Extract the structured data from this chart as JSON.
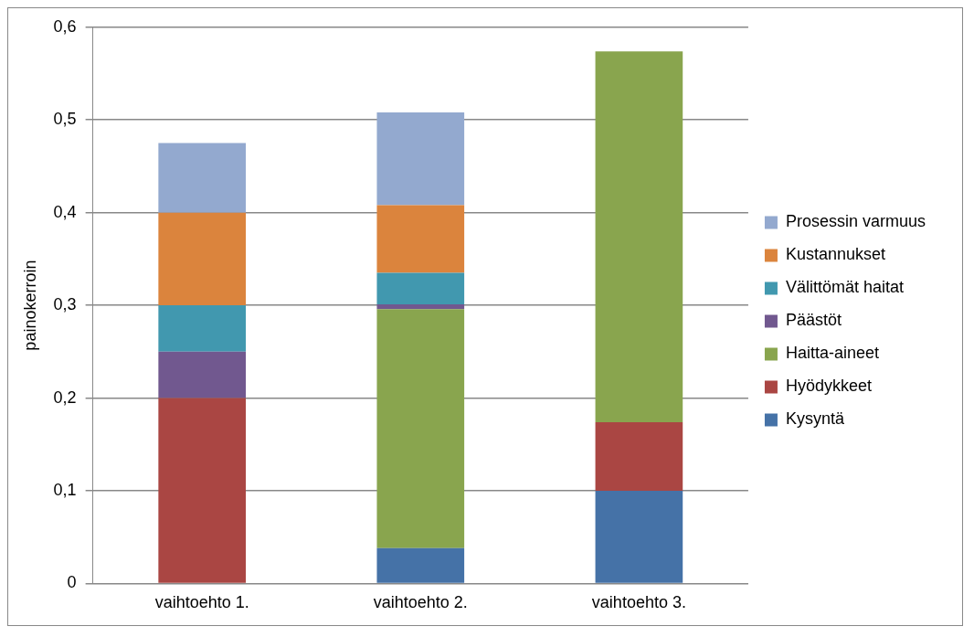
{
  "chart_data": {
    "type": "bar",
    "stacked": true,
    "ylabel": "painokerroin",
    "categories": [
      "vaihtoehto 1.",
      "vaihtoehto 2.",
      "vaihtoehto 3."
    ],
    "ylim": [
      0,
      0.6
    ],
    "yticks": [
      {
        "value": 0,
        "label": "0"
      },
      {
        "value": 0.1,
        "label": "0,1"
      },
      {
        "value": 0.2,
        "label": "0,2"
      },
      {
        "value": 0.3,
        "label": "0,3"
      },
      {
        "value": 0.4,
        "label": "0,4"
      },
      {
        "value": 0.5,
        "label": "0,5"
      },
      {
        "value": 0.6,
        "label": "0,6"
      }
    ],
    "grid": "y",
    "legend": "right",
    "series": [
      {
        "name": "Kysyntä",
        "color": "#4572a7",
        "values": [
          0,
          0.038,
          0.1
        ]
      },
      {
        "name": "Hyödykkeet",
        "color": "#aa4643",
        "values": [
          0.2,
          0,
          0.074
        ]
      },
      {
        "name": "Haitta-aineet",
        "color": "#89a54e",
        "values": [
          0,
          0.258,
          0.4
        ]
      },
      {
        "name": "Päästöt",
        "color": "#71588f",
        "values": [
          0.05,
          0.005,
          0
        ]
      },
      {
        "name": "Välittömät haitat",
        "color": "#4198af",
        "values": [
          0.05,
          0.034,
          0
        ]
      },
      {
        "name": "Kustannukset",
        "color": "#db843d",
        "values": [
          0.1,
          0.073,
          0
        ]
      },
      {
        "name": "Prosessin varmuus",
        "color": "#93a9cf",
        "values": [
          0.075,
          0.1,
          0
        ]
      }
    ]
  }
}
